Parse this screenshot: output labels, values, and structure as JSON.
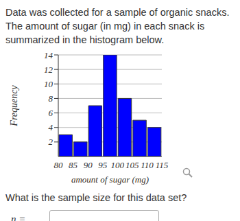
{
  "intro": "Data was collected for a sample of organic snacks. The amount of sugar (in mg) in each snack is summarized in the histogram below.",
  "chart_data": {
    "type": "histogram",
    "bins": [
      80,
      85,
      90,
      95,
      100,
      105,
      110,
      115
    ],
    "values": [
      3,
      2,
      7,
      14,
      8,
      5,
      4
    ],
    "color": "#0000ff",
    "xlabel": "amount of sugar (mg)",
    "ylabel": "Frequency",
    "xlim": [
      80,
      115
    ],
    "xticks": [
      80,
      85,
      90,
      95,
      100,
      105,
      110,
      115
    ],
    "ylim": [
      0,
      14
    ],
    "yticks": [
      2,
      4,
      6,
      8,
      10,
      12,
      14
    ],
    "grid": true
  },
  "question": "What is the sample size for this data set?",
  "answer_label": "n ="
}
